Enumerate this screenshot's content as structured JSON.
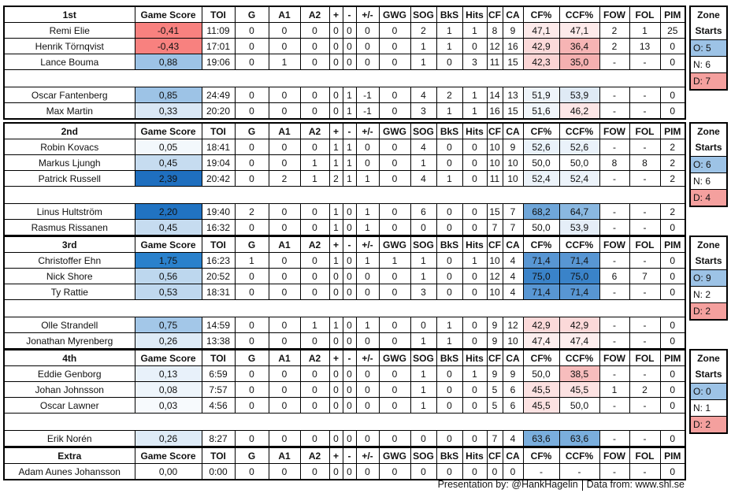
{
  "headers": [
    "Game Score",
    "TOI",
    "G",
    "A1",
    "A2",
    "+",
    "-",
    "+/-",
    "GWG",
    "SOG",
    "BkS",
    "Hits",
    "CF",
    "CA",
    "CF%",
    "CCF%",
    "FOW",
    "FOL",
    "PIM"
  ],
  "zone_title": [
    "Zone",
    "Starts"
  ],
  "colors": {
    "zone_o": "#9dc3e6",
    "zone_n": "#ffffff",
    "zone_d": "#f4a09e"
  },
  "blocks": [
    {
      "title": "1st",
      "zone": {
        "o": "O: 5",
        "n": "N: 6",
        "d": "D: 7"
      },
      "rows": [
        {
          "name": "Remi Elie",
          "cells": [
            "-0,41",
            "11:09",
            "0",
            "0",
            "0",
            "0",
            "0",
            "0",
            "0",
            "2",
            "1",
            "1",
            "8",
            "9",
            "47,1",
            "47,1",
            "2",
            "1",
            "25"
          ],
          "bg": [
            "#f8817f",
            "#fdeaea",
            "#fdeaea"
          ]
        },
        {
          "name": "Henrik Törnqvist",
          "cells": [
            "-0,43",
            "17:01",
            "0",
            "0",
            "0",
            "0",
            "0",
            "0",
            "0",
            "1",
            "1",
            "0",
            "12",
            "16",
            "42,9",
            "36,4",
            "2",
            "13",
            "0"
          ],
          "bg": [
            "#f8817f",
            "#fbd9d9",
            "#f6b4b4"
          ]
        },
        {
          "name": "Lance Bouma",
          "cells": [
            "0,88",
            "19:06",
            "0",
            "1",
            "0",
            "0",
            "0",
            "0",
            "0",
            "1",
            "0",
            "3",
            "11",
            "15",
            "42,3",
            "35,0",
            "-",
            "-",
            "0"
          ],
          "bg": [
            "#9dc3e6",
            "#fbd5d5",
            "#f5b0b0"
          ]
        },
        null,
        {
          "name": "Oscar Fantenberg",
          "cells": [
            "0,85",
            "24:49",
            "0",
            "0",
            "0",
            "0",
            "1",
            "-1",
            "0",
            "4",
            "2",
            "1",
            "14",
            "13",
            "51,9",
            "53,9",
            "-",
            "-",
            "0"
          ],
          "bg": [
            "#9dc3e6",
            "#eef4fa",
            "#dfeaf5"
          ]
        },
        {
          "name": "Max Martin",
          "cells": [
            "0,33",
            "20:20",
            "0",
            "0",
            "0",
            "0",
            "1",
            "-1",
            "0",
            "3",
            "1",
            "1",
            "16",
            "15",
            "51,6",
            "46,2",
            "-",
            "-",
            "0"
          ],
          "bg": [
            "#d9e7f5",
            "#f1f6fb",
            "#fce6e6"
          ]
        }
      ]
    },
    {
      "title": "2nd",
      "zone": {
        "o": "O: 6",
        "n": "N: 6",
        "d": "D: 4"
      },
      "rows": [
        {
          "name": "Robin Kovacs",
          "cells": [
            "0,05",
            "18:41",
            "0",
            "0",
            "0",
            "1",
            "1",
            "0",
            "0",
            "4",
            "0",
            "0",
            "10",
            "9",
            "52,6",
            "52,6",
            "-",
            "-",
            "2"
          ],
          "bg": [
            "#f3f8fc",
            "#eaf2fa",
            "#eaf2fa"
          ]
        },
        {
          "name": "Markus Ljungh",
          "cells": [
            "0,45",
            "19:04",
            "0",
            "0",
            "1",
            "1",
            "1",
            "0",
            "0",
            "1",
            "0",
            "0",
            "10",
            "10",
            "50,0",
            "50,0",
            "8",
            "8",
            "2"
          ],
          "bg": [
            "#c6dcf0",
            "#ffffff",
            "#ffffff"
          ]
        },
        {
          "name": "Patrick Russell",
          "cells": [
            "2,39",
            "20:42",
            "0",
            "2",
            "1",
            "2",
            "1",
            "1",
            "0",
            "4",
            "1",
            "0",
            "11",
            "10",
            "52,4",
            "52,4",
            "-",
            "-",
            "2"
          ],
          "bg": [
            "#1f6fbf",
            "#ecf3fa",
            "#ecf3fa"
          ]
        },
        null,
        {
          "name": "Linus Hultström",
          "cells": [
            "2,20",
            "19:40",
            "2",
            "0",
            "0",
            "1",
            "0",
            "1",
            "0",
            "6",
            "0",
            "0",
            "15",
            "7",
            "68,2",
            "64,7",
            "-",
            "-",
            "2"
          ],
          "bg": [
            "#2173c2",
            "#6fa6d9",
            "#8ab8e1"
          ]
        },
        {
          "name": "Rasmus Rissanen",
          "cells": [
            "0,45",
            "16:32",
            "0",
            "0",
            "0",
            "1",
            "0",
            "1",
            "0",
            "0",
            "0",
            "0",
            "7",
            "7",
            "50,0",
            "53,9",
            "-",
            "-",
            "0"
          ],
          "bg": [
            "#c6dcf0",
            "#ffffff",
            "#e5eef8"
          ]
        }
      ]
    },
    {
      "title": "3rd",
      "zone": {
        "o": "O: 9",
        "n": "N: 2",
        "d": "D: 2"
      },
      "rows": [
        {
          "name": "Christoffer Ehn",
          "cells": [
            "1,75",
            "16:23",
            "1",
            "0",
            "0",
            "1",
            "0",
            "1",
            "1",
            "1",
            "0",
            "1",
            "10",
            "4",
            "71,4",
            "71,4",
            "-",
            "-",
            "0"
          ],
          "bg": [
            "#2a81cc",
            "#5896d3",
            "#5896d3"
          ]
        },
        {
          "name": "Nick Shore",
          "cells": [
            "0,56",
            "20:52",
            "0",
            "0",
            "0",
            "0",
            "0",
            "0",
            "0",
            "1",
            "0",
            "0",
            "12",
            "4",
            "75,0",
            "75,0",
            "6",
            "7",
            "0"
          ],
          "bg": [
            "#bdd7ee",
            "#3a83c9",
            "#3a83c9"
          ]
        },
        {
          "name": "Ty Rattie",
          "cells": [
            "0,53",
            "18:31",
            "0",
            "0",
            "0",
            "0",
            "0",
            "0",
            "0",
            "3",
            "0",
            "0",
            "10",
            "4",
            "71,4",
            "71,4",
            "-",
            "-",
            "0"
          ],
          "bg": [
            "#bfd8ef",
            "#5896d3",
            "#5896d3"
          ]
        },
        null,
        {
          "name": "Olle Strandell",
          "cells": [
            "0,75",
            "14:59",
            "0",
            "0",
            "1",
            "1",
            "0",
            "1",
            "0",
            "0",
            "1",
            "0",
            "9",
            "12",
            "42,9",
            "42,9",
            "-",
            "-",
            "0"
          ],
          "bg": [
            "#a3c7e8",
            "#fbd9d9",
            "#fbd9d9"
          ]
        },
        {
          "name": "Jonathan Myrenberg",
          "cells": [
            "0,26",
            "13:38",
            "0",
            "0",
            "0",
            "0",
            "0",
            "0",
            "0",
            "1",
            "1",
            "0",
            "9",
            "10",
            "47,4",
            "47,4",
            "-",
            "-",
            "0"
          ],
          "bg": [
            "#deebf7",
            "#fdeeee",
            "#fdeeee"
          ]
        }
      ]
    },
    {
      "title": "4th",
      "zone": {
        "o": "O: 0",
        "n": "N: 1",
        "d": "D: 2"
      },
      "rows": [
        {
          "name": "Eddie Genborg",
          "cells": [
            "0,13",
            "6:59",
            "0",
            "0",
            "0",
            "0",
            "0",
            "0",
            "0",
            "1",
            "0",
            "1",
            "9",
            "9",
            "50,0",
            "38,5",
            "-",
            "-",
            "0"
          ],
          "bg": [
            "#e8f1fa",
            "#ffffff",
            "#f7bdbd"
          ]
        },
        {
          "name": "Johan Johnsson",
          "cells": [
            "0,08",
            "7:57",
            "0",
            "0",
            "0",
            "0",
            "0",
            "0",
            "0",
            "1",
            "0",
            "0",
            "5",
            "6",
            "45,5",
            "45,5",
            "1",
            "2",
            "0"
          ],
          "bg": [
            "#eef5fb",
            "#fce2e2",
            "#fce2e2"
          ]
        },
        {
          "name": "Oscar Lawner",
          "cells": [
            "0,03",
            "4:56",
            "0",
            "0",
            "0",
            "0",
            "0",
            "0",
            "0",
            "1",
            "0",
            "0",
            "5",
            "6",
            "45,5",
            "50,0",
            "-",
            "-",
            "0"
          ],
          "bg": [
            "#f7fafd",
            "#fce2e2",
            "#ffffff"
          ]
        },
        null,
        {
          "name": "Erik Norén",
          "cells": [
            "0,26",
            "8:27",
            "0",
            "0",
            "0",
            "0",
            "0",
            "0",
            "0",
            "0",
            "0",
            "0",
            "7",
            "4",
            "63,6",
            "63,6",
            "-",
            "-",
            "0"
          ],
          "bg": [
            "#deebf7",
            "#7aaedd",
            "#7aaedd"
          ]
        }
      ]
    },
    {
      "title": "Extra",
      "zone": null,
      "rows": [
        {
          "name": "Adam Aunes Johansson",
          "cells": [
            "0,00",
            "0:00",
            "0",
            "0",
            "0",
            "0",
            "0",
            "0",
            "0",
            "0",
            "0",
            "0",
            "0",
            "0",
            "-",
            "-",
            "-",
            "-",
            "0"
          ],
          "bg": [
            "#ffffff",
            "#ffffff",
            "#ffffff"
          ]
        }
      ]
    }
  ],
  "footer": {
    "presentation": "Presentation by: @HankHagelin",
    "source": "Data from: www.shl.se"
  }
}
